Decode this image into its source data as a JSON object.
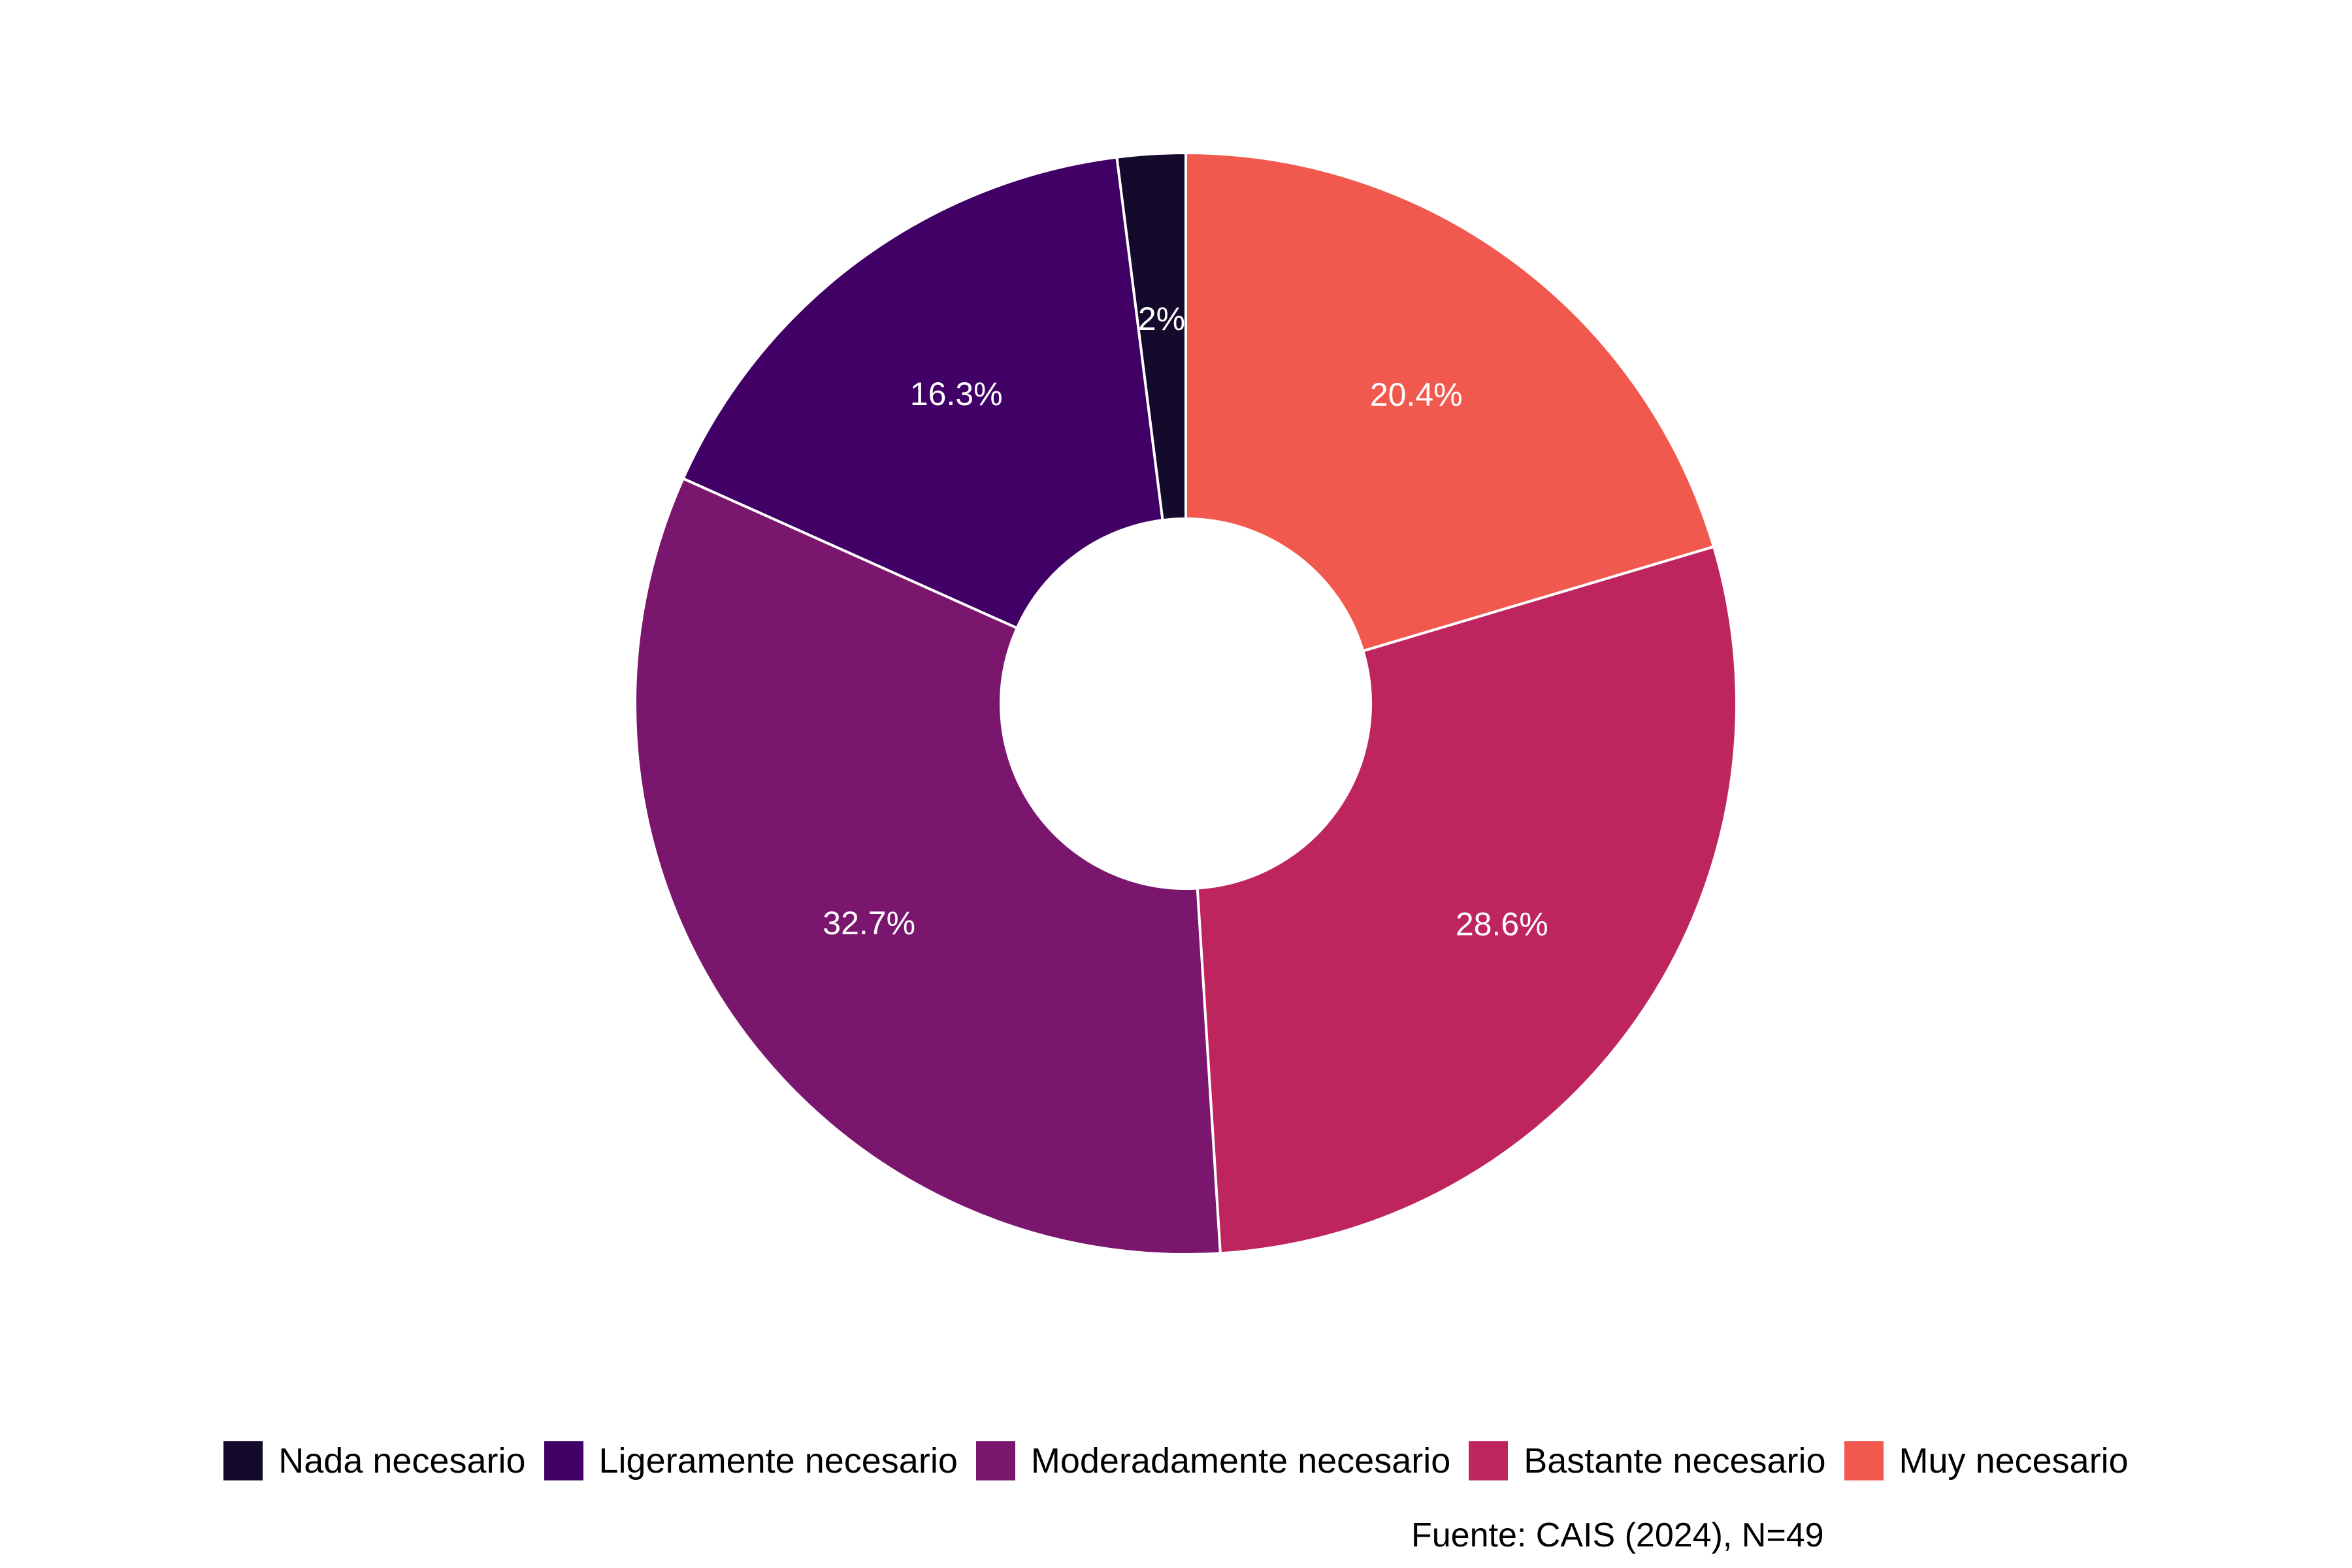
{
  "chart_data": {
    "type": "pie",
    "donut": true,
    "categories": [
      "Nada necesario",
      "Ligeramente necesario",
      "Moderadamente necesario",
      "Bastante necesario",
      "Muy necesario"
    ],
    "values": [
      2.0,
      16.3,
      32.7,
      28.6,
      20.4
    ],
    "labels": [
      "2%",
      "16.3%",
      "32.7%",
      "28.6%",
      "20.4%"
    ],
    "colors": [
      "#140A2B",
      "#400065",
      "#7A166E",
      "#BE255F",
      "#F2594E"
    ],
    "legend_position": "bottom",
    "caption": "Fuente: CAIS (2024), N=49"
  }
}
